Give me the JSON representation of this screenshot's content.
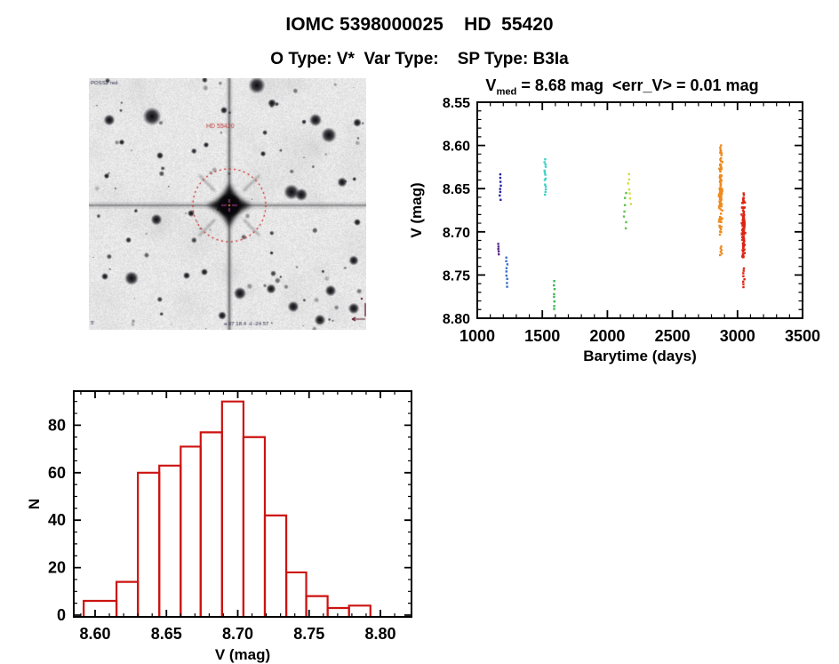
{
  "header": {
    "title": "IOMC 5398000025    HD  55420",
    "subtitle": "O Type: V*  Var Type:    SP Type: B3Ia"
  },
  "finder": {
    "top_left_text": "POSS2 red",
    "target_label": "HD 55420",
    "bottom_text": "a 07 18.4  d -24 57",
    "scale_text": "5'",
    "target_center": [
      158,
      143
    ],
    "circle_radius": 41,
    "colors": {
      "circle": "#d42424",
      "crosshair": "#cc44aa",
      "annotation": "#c03030",
      "tiny_text": "#2a2a4a"
    },
    "stars": [
      [
        71,
        43,
        6.5
      ],
      [
        23,
        47,
        4
      ],
      [
        189,
        8,
        6
      ],
      [
        206,
        28,
        3
      ],
      [
        255,
        47,
        4.5
      ],
      [
        270,
        64,
        5.5
      ],
      [
        228,
        128,
        5.5
      ],
      [
        239,
        131,
        4.5
      ],
      [
        285,
        117,
        3.5
      ],
      [
        76,
        159,
        4
      ],
      [
        115,
        152,
        2.5
      ],
      [
        48,
        225,
        5
      ],
      [
        170,
        242,
        4.5
      ],
      [
        205,
        237,
        3.5
      ],
      [
        230,
        257,
        4
      ],
      [
        272,
        239,
        4
      ],
      [
        298,
        205,
        3.5
      ],
      [
        260,
        272,
        4
      ],
      [
        150,
        267,
        3
      ],
      [
        110,
        222,
        2.5
      ],
      [
        80,
        87,
        2.5
      ],
      [
        196,
        85,
        2
      ],
      [
        132,
        75,
        2
      ],
      [
        20,
        110,
        2
      ],
      [
        37,
        72,
        2
      ],
      [
        130,
        218,
        2.5
      ],
      [
        302,
        162,
        2.5
      ],
      [
        302,
        50,
        3
      ],
      [
        152,
        36,
        2.5
      ],
      [
        298,
        259,
        4
      ],
      [
        18,
        223,
        2.5
      ]
    ]
  },
  "chart_data": [
    {
      "type": "scatter",
      "title": "V_med = 8.68 mag <err_V> = 0.01 mag",
      "title_v": "V",
      "title_sub": "med",
      "title_rest": " = 8.68 mag  <err_V> = 0.01 mag",
      "xlabel": "Barytime (days)",
      "ylabel": "V (mag)",
      "xlim": [
        1000,
        3500
      ],
      "ylim": [
        8.8,
        8.55
      ],
      "xticks": [
        1000,
        1500,
        2000,
        2500,
        3000,
        3500
      ],
      "yticks": [
        "8.55",
        "8.60",
        "8.65",
        "8.70",
        "8.75",
        "8.80"
      ],
      "x_minor_step": 100,
      "y_minor_step": 0.01,
      "v_median": 8.68,
      "v_err": 0.01,
      "clusters": [
        {
          "t": 1178,
          "v_min": 8.633,
          "v_max": 8.663,
          "n": 8,
          "color": "#26269c",
          "spread": 1.5
        },
        {
          "t": 1164,
          "v_min": 8.714,
          "v_max": 8.726,
          "n": 5,
          "color": "#552a85",
          "spread": 1.2
        },
        {
          "t": 1225,
          "v_min": 8.729,
          "v_max": 8.764,
          "n": 9,
          "color": "#3a6fc8",
          "spread": 1.2
        },
        {
          "t": 1523,
          "v_min": 8.616,
          "v_max": 8.657,
          "n": 14,
          "color": "#3fd0c5",
          "spread": 1.5
        },
        {
          "t": 1591,
          "v_min": 8.757,
          "v_max": 8.79,
          "n": 8,
          "color": "#3cb852",
          "spread": 1.5
        },
        {
          "t": 2140,
          "v_min": 8.655,
          "v_max": 8.696,
          "n": 7,
          "color": "#5fc24c",
          "spread": 3
        },
        {
          "t": 2165,
          "v_min": 8.633,
          "v_max": 8.668,
          "n": 7,
          "color": "#d8dc3c",
          "spread": 4
        },
        {
          "t": 2870,
          "v_min": 8.598,
          "v_max": 8.71,
          "n": 120,
          "color": "#ee8a1f",
          "spread": 2.5
        },
        {
          "t": 2872,
          "v_min": 8.717,
          "v_max": 8.727,
          "n": 6,
          "color": "#ee8a1f",
          "spread": 1.5
        },
        {
          "t": 3045,
          "v_min": 8.654,
          "v_max": 8.738,
          "n": 120,
          "color": "#dd2413",
          "spread": 2.5
        },
        {
          "t": 3047,
          "v_min": 8.742,
          "v_max": 8.764,
          "n": 8,
          "color": "#dd2413",
          "spread": 1.5
        }
      ]
    },
    {
      "type": "histogram",
      "xlabel": "V (mag)",
      "ylabel": "N",
      "bin_edges": [
        8.592,
        8.615,
        8.63,
        8.645,
        8.66,
        8.674,
        8.689,
        8.704,
        8.719,
        8.734,
        8.748,
        8.763,
        8.778,
        8.793
      ],
      "counts": [
        6,
        14,
        60,
        63,
        71,
        77,
        90,
        75,
        42,
        18,
        8,
        3,
        4
      ],
      "xticks": [
        "8.60",
        "8.65",
        "8.70",
        "8.75",
        "8.80"
      ],
      "yticks": [
        0,
        20,
        40,
        60,
        80
      ],
      "x_minor_step": 0.01,
      "y_minor_step": 5,
      "color": "#cc1310"
    }
  ]
}
